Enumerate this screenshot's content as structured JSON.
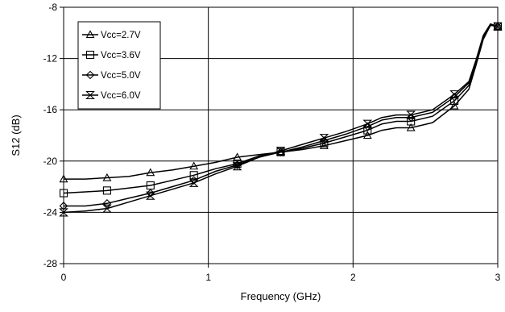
{
  "chart_data": {
    "type": "line",
    "xlabel": "Frequency (GHz)",
    "ylabel": "S12 (dB)",
    "xlim": [
      0,
      3
    ],
    "ylim": [
      -28,
      -8
    ],
    "xticks": [
      0,
      1,
      2,
      3
    ],
    "yticks": [
      -28,
      -24,
      -20,
      -16,
      -12,
      -8
    ],
    "xtick_labels": [
      "0",
      "1",
      "2",
      "3"
    ],
    "ytick_labels": [
      "-28",
      "-24",
      "-20",
      "-16",
      "-12",
      "-8"
    ],
    "grid": true,
    "legend_position": "top-left",
    "series": [
      {
        "name": "Vcc=2.7V",
        "marker": "triangle",
        "color": "#000000",
        "x": [
          0,
          0.15,
          0.3,
          0.45,
          0.6,
          0.75,
          0.9,
          1.05,
          1.2,
          1.35,
          1.5,
          1.65,
          1.8,
          1.95,
          2.1,
          2.2,
          2.3,
          2.4,
          2.55,
          2.7,
          2.8,
          2.85,
          2.9,
          2.95,
          3.0
        ],
        "y": [
          -21.4,
          -21.4,
          -21.3,
          -21.2,
          -20.9,
          -20.7,
          -20.4,
          -20.1,
          -19.7,
          -19.5,
          -19.3,
          -19.1,
          -18.8,
          -18.4,
          -18.0,
          -17.6,
          -17.4,
          -17.4,
          -17.0,
          -15.7,
          -14.4,
          -12.5,
          -10.5,
          -9.4,
          -9.5
        ]
      },
      {
        "name": "Vcc=3.6V",
        "marker": "square",
        "color": "#000000",
        "x": [
          0,
          0.15,
          0.3,
          0.45,
          0.6,
          0.75,
          0.9,
          1.05,
          1.2,
          1.35,
          1.5,
          1.65,
          1.8,
          1.95,
          2.1,
          2.2,
          2.3,
          2.4,
          2.55,
          2.7,
          2.8,
          2.85,
          2.9,
          2.95,
          3.0
        ],
        "y": [
          -22.5,
          -22.4,
          -22.3,
          -22.1,
          -21.9,
          -21.5,
          -21.1,
          -20.6,
          -20.2,
          -19.6,
          -19.3,
          -19.0,
          -18.6,
          -18.1,
          -17.6,
          -17.1,
          -16.9,
          -16.9,
          -16.5,
          -15.3,
          -14.1,
          -12.3,
          -10.4,
          -9.4,
          -9.5
        ]
      },
      {
        "name": "Vcc=5.0V",
        "marker": "diamond",
        "color": "#000000",
        "x": [
          0,
          0.15,
          0.3,
          0.45,
          0.6,
          0.75,
          0.9,
          1.05,
          1.2,
          1.35,
          1.5,
          1.65,
          1.8,
          1.95,
          2.1,
          2.2,
          2.3,
          2.4,
          2.55,
          2.7,
          2.8,
          2.85,
          2.9,
          2.95,
          3.0
        ],
        "y": [
          -23.5,
          -23.5,
          -23.3,
          -22.9,
          -22.5,
          -22.0,
          -21.5,
          -20.8,
          -20.3,
          -19.7,
          -19.3,
          -18.9,
          -18.4,
          -17.9,
          -17.3,
          -16.8,
          -16.6,
          -16.6,
          -16.2,
          -15.0,
          -13.9,
          -12.2,
          -10.3,
          -9.4,
          -9.5
        ]
      },
      {
        "name": "Vcc=6.0V",
        "marker": "hourglass",
        "color": "#000000",
        "x": [
          0,
          0.15,
          0.3,
          0.45,
          0.6,
          0.75,
          0.9,
          1.05,
          1.2,
          1.35,
          1.5,
          1.65,
          1.8,
          1.95,
          2.1,
          2.2,
          2.3,
          2.4,
          2.55,
          2.7,
          2.8,
          2.85,
          2.9,
          2.95,
          3.0
        ],
        "y": [
          -24.0,
          -23.9,
          -23.7,
          -23.2,
          -22.7,
          -22.2,
          -21.7,
          -21.0,
          -20.4,
          -19.7,
          -19.2,
          -18.7,
          -18.2,
          -17.7,
          -17.1,
          -16.6,
          -16.4,
          -16.4,
          -16.0,
          -14.8,
          -13.8,
          -12.1,
          -10.2,
          -9.3,
          -9.5
        ]
      }
    ],
    "marker_x": [
      0,
      0.3,
      0.6,
      0.9,
      1.2,
      1.5,
      1.8,
      2.1,
      2.4,
      2.7,
      3.0
    ]
  }
}
